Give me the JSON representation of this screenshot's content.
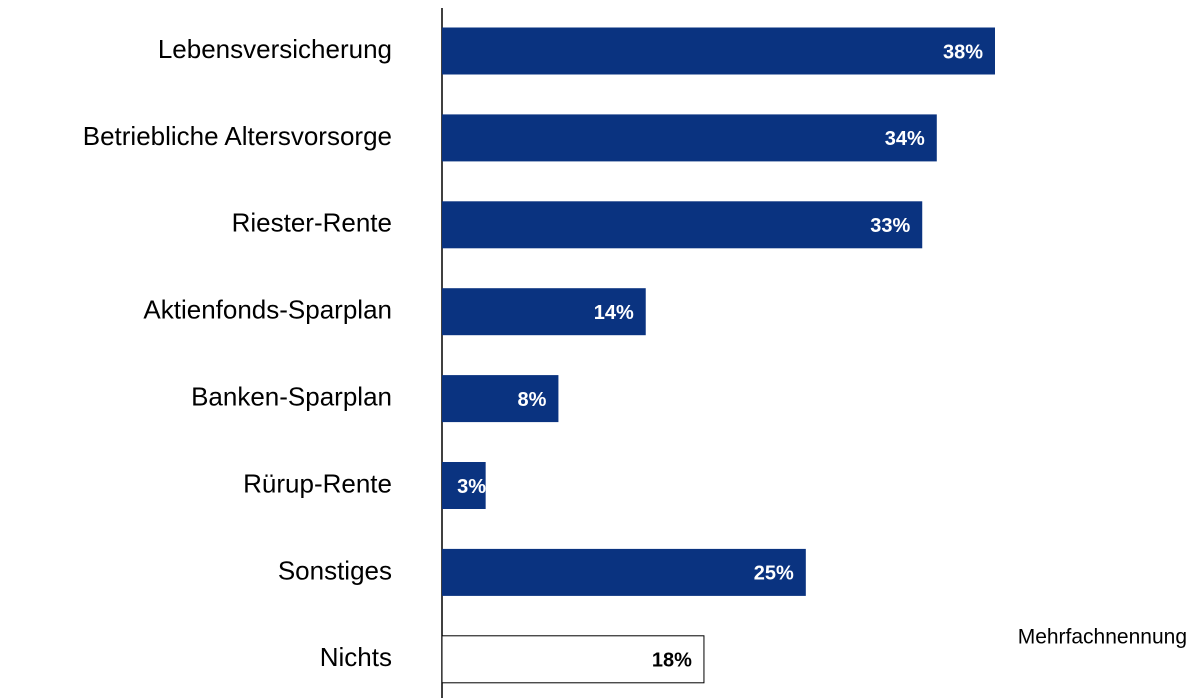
{
  "chart_data": {
    "type": "bar",
    "orientation": "horizontal",
    "categories": [
      "Lebensversicherung",
      "Betriebliche Altersvorsorge",
      "Riester-Rente",
      "Aktienfonds-Sparplan",
      "Banken-Sparplan",
      "Rürup-Rente",
      "Sonstiges",
      "Nichts"
    ],
    "values": [
      38,
      34,
      33,
      14,
      8,
      3,
      25,
      18
    ],
    "value_labels": [
      "38%",
      "34%",
      "33%",
      "14%",
      "8%",
      "3%",
      "25%",
      "18%"
    ],
    "colors": [
      "#0a3380",
      "#0a3380",
      "#0a3380",
      "#0a3380",
      "#0a3380",
      "#0a3380",
      "#0a3380",
      "#ffffff"
    ],
    "annotation": "Mehrfachnennung"
  }
}
